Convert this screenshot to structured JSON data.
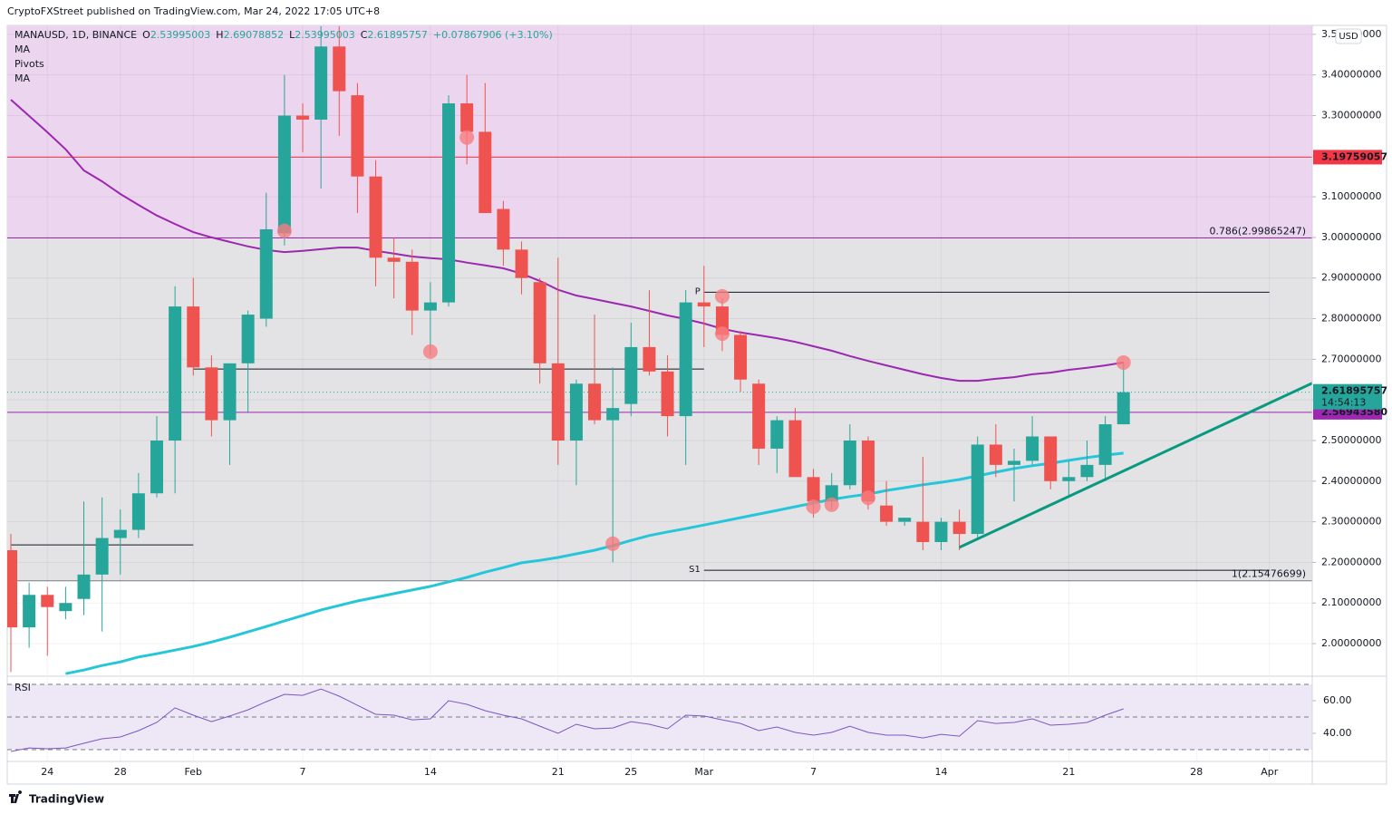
{
  "published": "CryptoFXStreet published on TradingView.com, Mar 24, 2022 17:05 UTC+8",
  "footer": "TradingView",
  "chart_data": [
    {
      "type": "candlestick",
      "symbol": "MANAUSD, 1D, BINANCE",
      "ohlc": [
        {
          "k": "O",
          "v": 2.53995003
        },
        {
          "k": "H",
          "v": 2.69078852
        },
        {
          "k": "L",
          "v": 2.53995003
        },
        {
          "k": "C",
          "v": 2.61895757
        }
      ],
      "change": "+0.07867906 (+3.10%)",
      "currency": "USD",
      "up_color": "#26a69a",
      "down_color": "#ef5350",
      "x": [
        "2022-01-22",
        "2022-01-23",
        "2022-01-24",
        "2022-01-25",
        "2022-01-26",
        "2022-01-27",
        "2022-01-28",
        "2022-01-29",
        "2022-01-30",
        "2022-01-31",
        "2022-02-01",
        "2022-02-02",
        "2022-02-03",
        "2022-02-04",
        "2022-02-05",
        "2022-02-06",
        "2022-02-07",
        "2022-02-08",
        "2022-02-09",
        "2022-02-10",
        "2022-02-11",
        "2022-02-12",
        "2022-02-13",
        "2022-02-14",
        "2022-02-15",
        "2022-02-16",
        "2022-02-17",
        "2022-02-18",
        "2022-02-19",
        "2022-02-20",
        "2022-02-21",
        "2022-02-22",
        "2022-02-23",
        "2022-02-24",
        "2022-02-25",
        "2022-02-26",
        "2022-02-27",
        "2022-02-28",
        "2022-03-01",
        "2022-03-02",
        "2022-03-03",
        "2022-03-04",
        "2022-03-05",
        "2022-03-06",
        "2022-03-07",
        "2022-03-08",
        "2022-03-09",
        "2022-03-10",
        "2022-03-11",
        "2022-03-12",
        "2022-03-13",
        "2022-03-14",
        "2022-03-15",
        "2022-03-16",
        "2022-03-17",
        "2022-03-18",
        "2022-03-19",
        "2022-03-20",
        "2022-03-21",
        "2022-03-22",
        "2022-03-23",
        "2022-03-24"
      ],
      "open": [
        2.23,
        2.04,
        2.12,
        2.08,
        2.11,
        2.17,
        2.26,
        2.28,
        2.37,
        2.5,
        2.83,
        2.68,
        2.55,
        2.69,
        2.8,
        3.01,
        3.3,
        3.29,
        3.47,
        3.35,
        3.15,
        2.95,
        2.94,
        2.82,
        2.84,
        3.33,
        3.26,
        3.07,
        2.97,
        2.89,
        2.69,
        2.5,
        2.64,
        2.55,
        2.59,
        2.73,
        2.67,
        2.56,
        2.84,
        2.83,
        2.76,
        2.64,
        2.48,
        2.55,
        2.41,
        2.35,
        2.39,
        2.5,
        2.34,
        2.3,
        2.3,
        2.25,
        2.3,
        2.27,
        2.49,
        2.44,
        2.45,
        2.51,
        2.4,
        2.41,
        2.44,
        2.53995003
      ],
      "high": [
        2.27,
        2.15,
        2.14,
        2.14,
        2.35,
        2.36,
        2.33,
        2.42,
        2.56,
        2.88,
        2.9,
        2.71,
        2.69,
        2.82,
        3.11,
        3.4,
        3.33,
        3.52,
        3.52,
        3.38,
        3.19,
        3.0,
        2.97,
        2.89,
        3.35,
        3.4,
        3.38,
        3.09,
        2.99,
        2.9,
        2.95,
        2.65,
        2.81,
        2.68,
        2.79,
        2.87,
        2.71,
        2.87,
        2.93,
        2.85,
        2.77,
        2.65,
        2.56,
        2.58,
        2.43,
        2.42,
        2.54,
        2.51,
        2.4,
        2.31,
        2.46,
        2.31,
        2.33,
        2.51,
        2.54,
        2.48,
        2.56,
        2.51,
        2.45,
        2.5,
        2.56,
        2.69078852
      ],
      "low": [
        1.93,
        1.99,
        1.97,
        2.06,
        2.07,
        2.03,
        2.17,
        2.26,
        2.36,
        2.37,
        2.66,
        2.51,
        2.44,
        2.57,
        2.78,
        2.98,
        3.21,
        3.12,
        3.25,
        3.06,
        2.88,
        2.85,
        2.76,
        2.71,
        2.83,
        3.18,
        3.07,
        2.93,
        2.86,
        2.64,
        2.44,
        2.39,
        2.54,
        2.2,
        2.56,
        2.66,
        2.51,
        2.44,
        2.73,
        2.72,
        2.62,
        2.44,
        2.42,
        2.41,
        2.31,
        2.33,
        2.38,
        2.33,
        2.29,
        2.29,
        2.23,
        2.23,
        2.23,
        2.26,
        2.41,
        2.35,
        2.44,
        2.38,
        2.36,
        2.4,
        2.4,
        2.53995003
      ],
      "close": [
        2.04,
        2.12,
        2.09,
        2.1,
        2.17,
        2.26,
        2.28,
        2.37,
        2.5,
        2.83,
        2.68,
        2.55,
        2.69,
        2.81,
        3.02,
        3.3,
        3.29,
        3.47,
        3.36,
        3.15,
        2.95,
        2.94,
        2.82,
        2.84,
        3.33,
        3.26,
        3.06,
        2.97,
        2.9,
        2.69,
        2.5,
        2.64,
        2.55,
        2.58,
        2.73,
        2.67,
        2.56,
        2.84,
        2.83,
        2.76,
        2.65,
        2.48,
        2.55,
        2.41,
        2.35,
        2.39,
        2.5,
        2.35,
        2.3,
        2.31,
        2.25,
        2.3,
        2.27,
        2.49,
        2.44,
        2.45,
        2.51,
        2.4,
        2.41,
        2.44,
        2.54,
        2.61895757
      ],
      "series": [
        {
          "name": "MA",
          "color": "#9c27b0",
          "values": [
            3.339,
            3.299,
            3.259,
            3.217,
            3.165,
            3.138,
            3.107,
            3.08,
            3.054,
            3.033,
            3.013,
            3.0,
            2.989,
            2.978,
            2.969,
            2.964,
            2.967,
            2.971,
            2.975,
            2.975,
            2.967,
            2.96,
            2.953,
            2.949,
            2.946,
            2.938,
            2.931,
            2.924,
            2.911,
            2.893,
            2.871,
            2.857,
            2.848,
            2.839,
            2.83,
            2.819,
            2.808,
            2.799,
            2.788,
            2.775,
            2.766,
            2.759,
            2.752,
            2.743,
            2.732,
            2.721,
            2.708,
            2.696,
            2.685,
            2.674,
            2.663,
            2.654,
            2.647,
            2.647,
            2.652,
            2.656,
            2.663,
            2.667,
            2.674,
            2.679,
            2.685,
            2.692
          ]
        },
        {
          "name": "MA",
          "color": "#26c6da",
          "values": [
            null,
            null,
            null,
            1.926,
            1.935,
            1.946,
            1.955,
            1.967,
            1.975,
            1.984,
            1.993,
            2.004,
            2.016,
            2.029,
            2.042,
            2.056,
            2.069,
            2.083,
            2.094,
            2.105,
            2.114,
            2.123,
            2.132,
            2.141,
            2.152,
            2.163,
            2.176,
            2.187,
            2.199,
            2.205,
            2.212,
            2.221,
            2.23,
            2.241,
            2.254,
            2.266,
            2.275,
            2.283,
            2.292,
            2.301,
            2.31,
            2.319,
            2.328,
            2.337,
            2.346,
            2.355,
            2.362,
            2.368,
            2.377,
            2.384,
            2.391,
            2.397,
            2.404,
            2.413,
            2.422,
            2.431,
            2.438,
            2.444,
            2.451,
            2.458,
            2.464,
            2.469
          ]
        }
      ],
      "pivots": {
        "name": "Pivots",
        "color": "#131722",
        "levels": [
          {
            "value": 2.243,
            "from": "2022-01-22",
            "to": "2022-02-01"
          },
          {
            "value": 2.676,
            "from": "2022-02-01",
            "to": "2022-03-01"
          },
          {
            "label": "P",
            "value": 2.865,
            "from": "2022-03-01",
            "to": "2022-04-01"
          },
          {
            "label": "S1",
            "value": 2.1807,
            "from": "2022-03-01",
            "to": "2022-04-01"
          }
        ]
      },
      "fib": [
        {
          "value": 2.99865247,
          "label": "0.786(2.99865247)",
          "color": "#9c27b0",
          "zone": "#ecd5ef"
        },
        {
          "value": 2.15476699,
          "label": "1(2.15476699)",
          "color": "#787b86",
          "zone": "#e3e3e6"
        }
      ],
      "hlines": [
        {
          "value": 3.19759057,
          "label": "3.19759057",
          "color": "#f23645"
        },
        {
          "value": 2.5694358,
          "label": "2.56943580",
          "color": "#9c27b0"
        }
      ],
      "last": {
        "value": 2.61895757,
        "countdown": "14:54:13",
        "color": "#26a69a"
      },
      "trendline": {
        "color": "#089981",
        "from": {
          "x": "2022-03-15",
          "y": 2.237
        },
        "to": {
          "x": "2022-04-03",
          "y": 2.634
        }
      },
      "markers": {
        "color": "#f77c80",
        "points": [
          {
            "x": "2022-02-06",
            "y": 3.016
          },
          {
            "x": "2022-02-14",
            "y": 2.719
          },
          {
            "x": "2022-02-16",
            "y": 3.246
          },
          {
            "x": "2022-02-24",
            "y": 2.246
          },
          {
            "x": "2022-03-02",
            "y": 2.855
          },
          {
            "x": "2022-03-02",
            "y": 2.763
          },
          {
            "x": "2022-03-07",
            "y": 2.337
          },
          {
            "x": "2022-03-08",
            "y": 2.342
          },
          {
            "x": "2022-03-10",
            "y": 2.359
          },
          {
            "x": "2022-03-24",
            "y": 2.692
          }
        ]
      },
      "xlim": [
        "2022-01-22",
        "2022-04-03"
      ],
      "xticks": [
        {
          "value": "2022-01-24",
          "label": "24"
        },
        {
          "value": "2022-01-28",
          "label": "28"
        },
        {
          "value": "2022-02-01",
          "label": "Feb"
        },
        {
          "value": "2022-02-07",
          "label": "7"
        },
        {
          "value": "2022-02-14",
          "label": "14"
        },
        {
          "value": "2022-02-21",
          "label": "21"
        },
        {
          "value": "2022-02-25",
          "label": "25"
        },
        {
          "value": "2022-03-01",
          "label": "Mar"
        },
        {
          "value": "2022-03-07",
          "label": "7"
        },
        {
          "value": "2022-03-14",
          "label": "14"
        },
        {
          "value": "2022-03-21",
          "label": "21"
        },
        {
          "value": "2022-03-28",
          "label": "28"
        },
        {
          "value": "2022-04-01",
          "label": "Apr"
        }
      ],
      "ylim": [
        1.922,
        3.522
      ],
      "yticks": [
        {
          "value": 2.0,
          "label": "2.00000000"
        },
        {
          "value": 2.1,
          "label": "2.10000000"
        },
        {
          "value": 2.2,
          "label": "2.20000000"
        },
        {
          "value": 2.3,
          "label": "2.30000000"
        },
        {
          "value": 2.4,
          "label": "2.40000000"
        },
        {
          "value": 2.5,
          "label": "2.50000000"
        },
        {
          "value": 2.6,
          "label": "2.60000000"
        },
        {
          "value": 2.7,
          "label": "2.70000000"
        },
        {
          "value": 2.8,
          "label": "2.80000000"
        },
        {
          "value": 2.9,
          "label": "2.90000000"
        },
        {
          "value": 3.0,
          "label": "3.00000000"
        },
        {
          "value": 3.1,
          "label": "3.10000000"
        },
        {
          "value": 3.2,
          "label": "3.20000000"
        },
        {
          "value": 3.3,
          "label": "3.30000000"
        },
        {
          "value": 3.4,
          "label": "3.40000000"
        },
        {
          "value": 3.5,
          "label": "3.50000000"
        }
      ],
      "grid": true
    },
    {
      "type": "line",
      "title": "RSI",
      "color": "#7e57c2",
      "values": [
        28.9,
        31.1,
        30.6,
        31.1,
        33.9,
        36.7,
        37.8,
        41.7,
        46.7,
        55.6,
        51.1,
        47.2,
        50.6,
        54.4,
        59.4,
        63.9,
        63.3,
        67.2,
        62.8,
        57.2,
        51.7,
        51.1,
        48.3,
        48.9,
        60.0,
        57.8,
        53.9,
        51.1,
        48.9,
        44.4,
        40.0,
        45.6,
        42.8,
        43.3,
        47.2,
        45.6,
        42.8,
        51.1,
        50.6,
        48.3,
        46.1,
        41.7,
        43.9,
        40.6,
        38.9,
        40.6,
        44.4,
        40.6,
        38.9,
        38.9,
        37.2,
        39.4,
        38.3,
        47.8,
        46.1,
        46.7,
        48.9,
        45.0,
        45.6,
        46.7,
        51.1,
        55.0
      ],
      "bands": [
        70,
        50,
        30
      ],
      "band_fill": "#ede7f6",
      "ylim": [
        22.8,
        73.9
      ],
      "yticks": [
        {
          "value": 60,
          "label": "60.00"
        },
        {
          "value": 40,
          "label": "40.00"
        }
      ]
    }
  ]
}
